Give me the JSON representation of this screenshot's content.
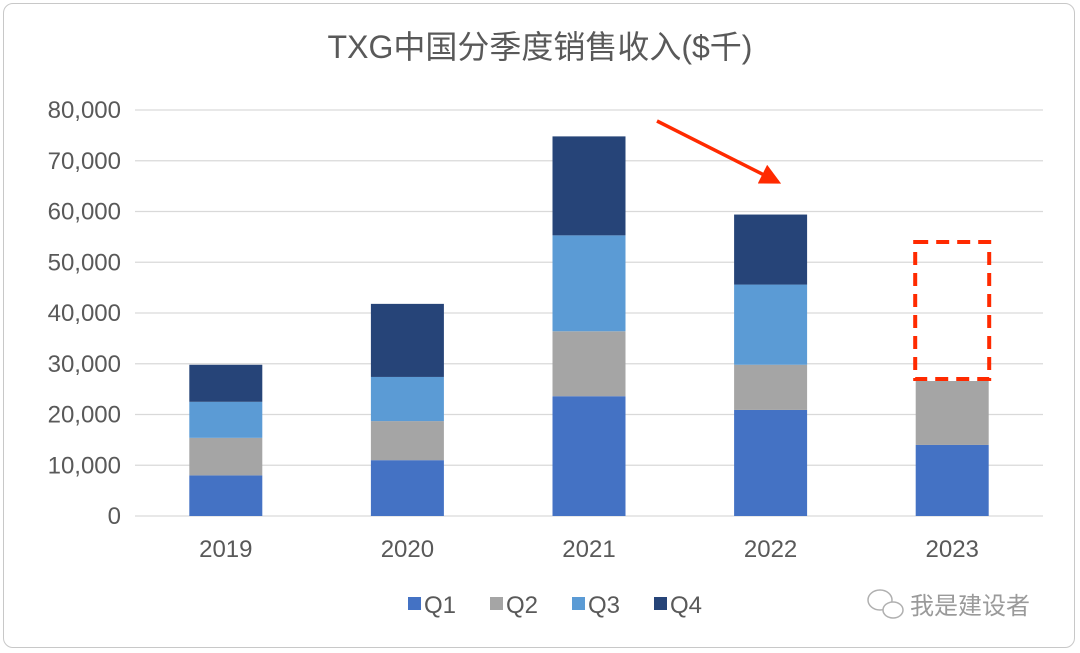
{
  "chart_data": {
    "type": "bar",
    "stacked": true,
    "title": "TXG中国分季度销售收入($千)",
    "xlabel": "",
    "ylabel": "",
    "ylim": [
      0,
      80000
    ],
    "yticks": [
      0,
      10000,
      20000,
      30000,
      40000,
      50000,
      60000,
      70000,
      80000
    ],
    "ytick_labels": [
      "0",
      "10,000",
      "20,000",
      "30,000",
      "40,000",
      "50,000",
      "60,000",
      "70,000",
      "80,000"
    ],
    "grid": true,
    "legend_position": "bottom",
    "categories": [
      "2019",
      "2020",
      "2021",
      "2022",
      "2023"
    ],
    "series": [
      {
        "name": "Q1",
        "color": "#4472c4",
        "values": [
          8000,
          11000,
          23600,
          20900,
          14000
        ]
      },
      {
        "name": "Q2",
        "color": "#a5a5a5",
        "values": [
          7400,
          7700,
          12800,
          8900,
          12600
        ]
      },
      {
        "name": "Q3",
        "color": "#5b9bd5",
        "values": [
          7100,
          8700,
          18900,
          15800,
          null
        ]
      },
      {
        "name": "Q4",
        "color": "#264478",
        "values": [
          7300,
          14400,
          19500,
          13800,
          null
        ]
      }
    ],
    "annotations": [
      {
        "type": "arrow",
        "color": "#ff2a00",
        "description": "declining trend from 2021 to 2022"
      },
      {
        "type": "dashed-box",
        "color": "#ff2a00",
        "category": "2023",
        "y_range": [
          27000,
          54000
        ]
      }
    ]
  },
  "watermark": "我是建设者"
}
